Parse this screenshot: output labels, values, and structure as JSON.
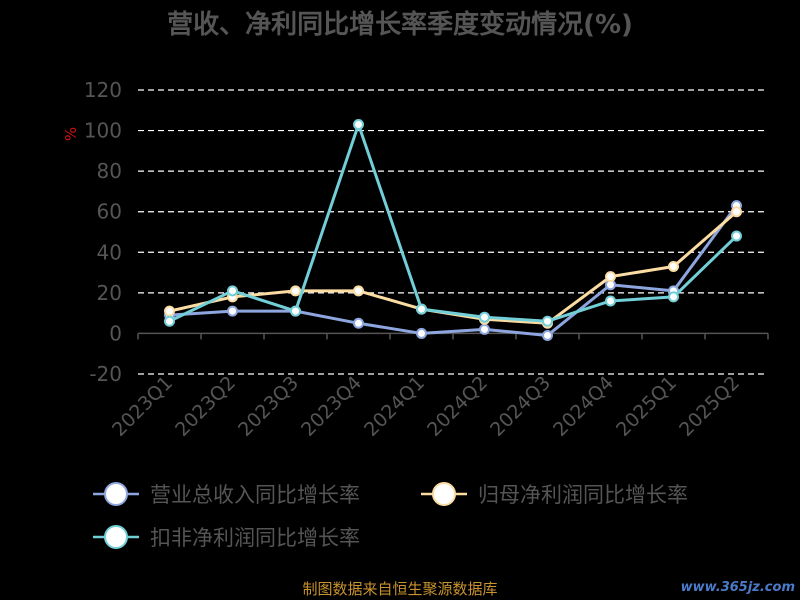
{
  "chart_data": {
    "type": "line",
    "title": "营收、净利同比增长率季度变动情况(%)",
    "ylabel": "%",
    "ylim": [
      -20,
      120
    ],
    "yticks": [
      "120",
      "100",
      "80",
      "60",
      "40",
      "20",
      "0",
      "-20"
    ],
    "grid": true,
    "legend_position": "bottom",
    "categories": [
      "2023Q1",
      "2023Q2",
      "2023Q3",
      "2023Q4",
      "2024Q1",
      "2024Q2",
      "2024Q3",
      "2024Q4",
      "2025Q1",
      "2025Q2"
    ],
    "series": [
      {
        "name": "营业总收入同比增长率",
        "color": "#8EA6DF",
        "values": [
          9,
          11,
          11,
          5,
          0,
          2,
          -1,
          24,
          21,
          63
        ]
      },
      {
        "name": "归母净利润同比增长率",
        "color": "#FBDDA4",
        "values": [
          11,
          18,
          21,
          21,
          12,
          7,
          5,
          28,
          33,
          60
        ]
      },
      {
        "name": "扣非净利润同比增长率",
        "color": "#72CFD8",
        "values": [
          6,
          21,
          11,
          103,
          12,
          8,
          6,
          16,
          18,
          48
        ]
      }
    ]
  },
  "colors": {
    "background": "#000000",
    "title": "#555555",
    "axis_text": "#555555",
    "ylabel": "#D01010",
    "grid": "#FFFFFF",
    "footer": "#C8922E",
    "watermark": "#4A7AC8"
  },
  "footer": "制图数据来自恒生聚源数据库",
  "watermark": "www.365jz.com"
}
